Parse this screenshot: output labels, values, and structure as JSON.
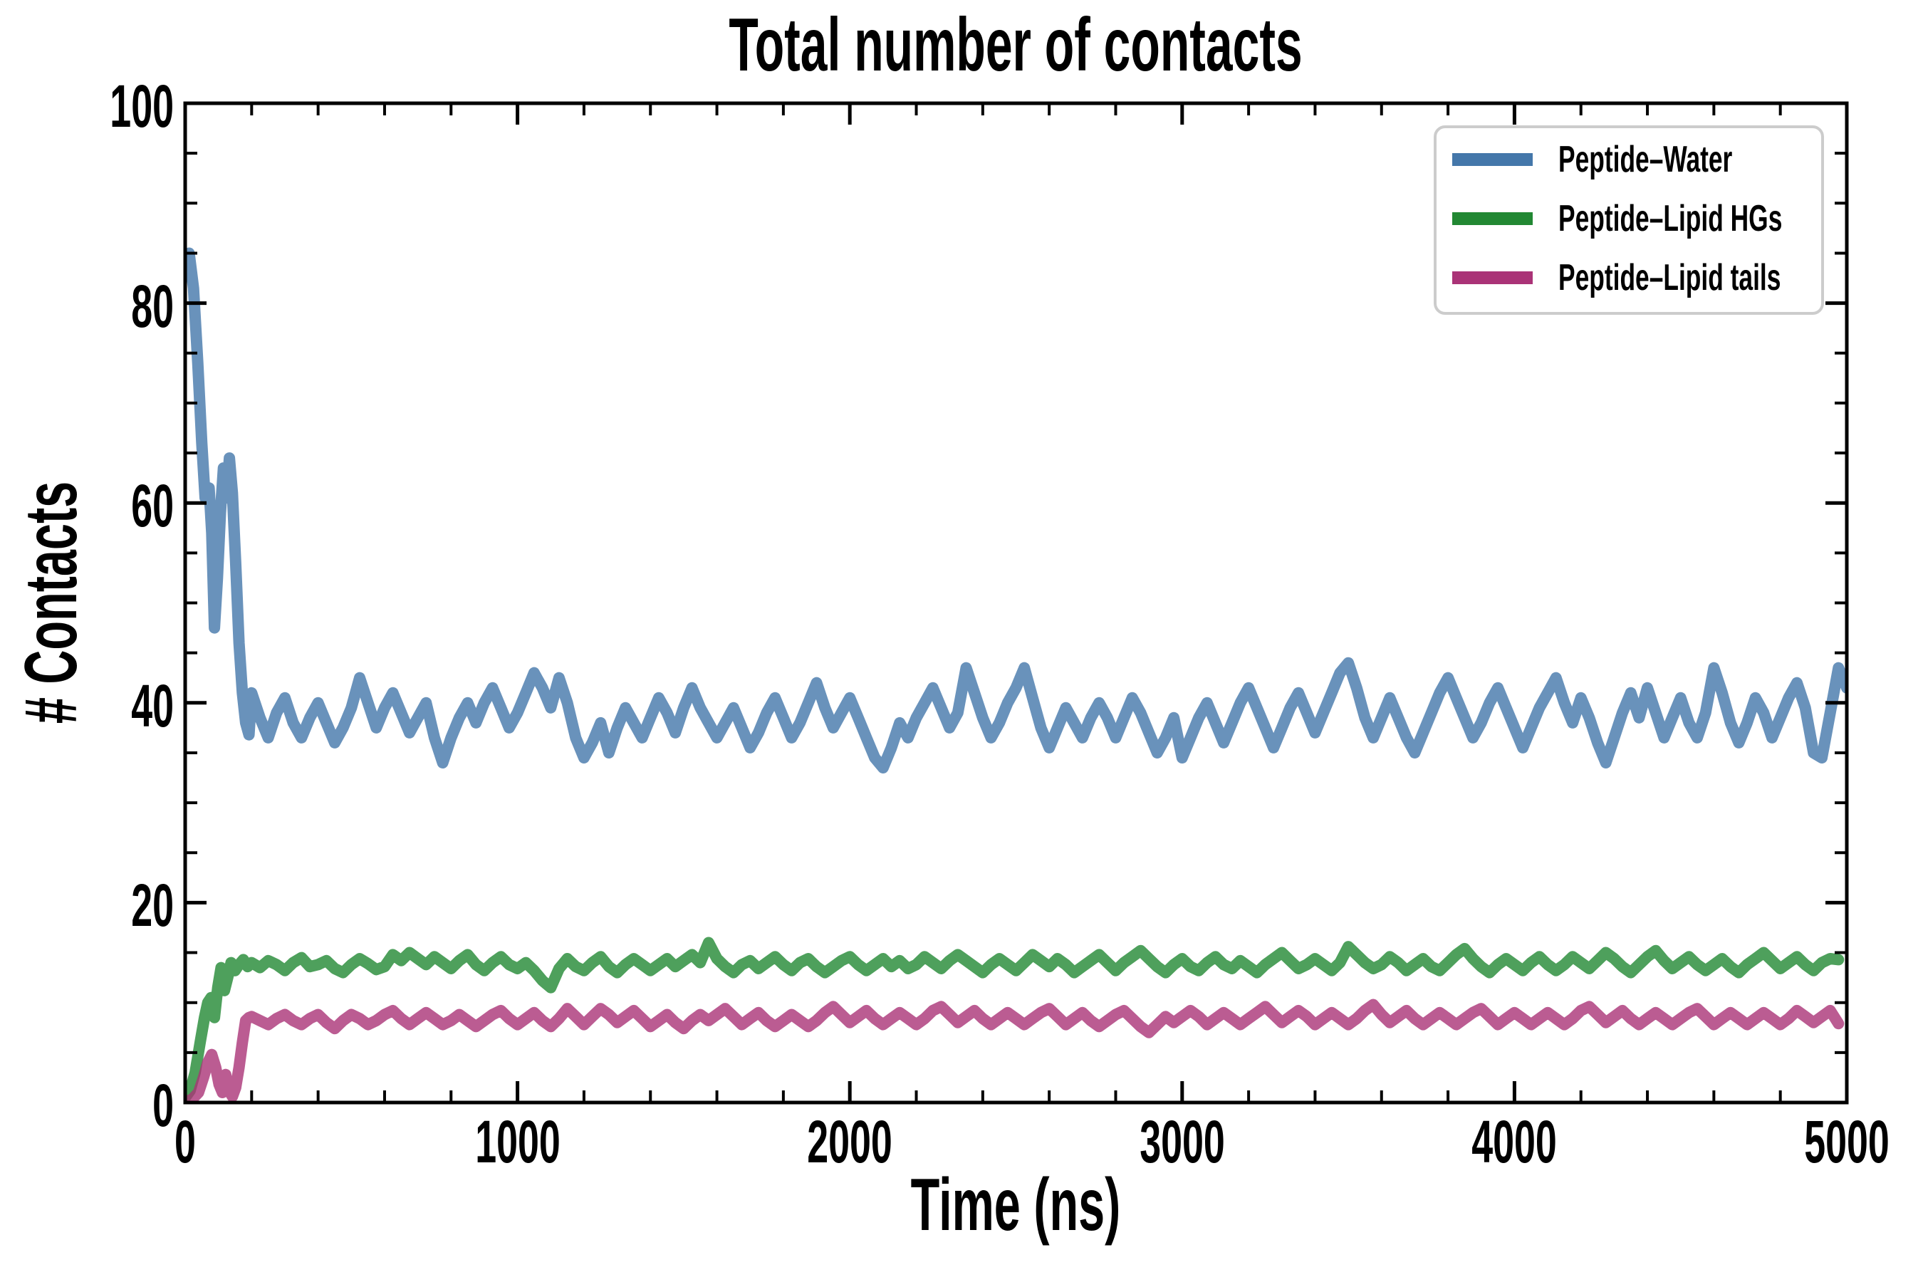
{
  "chart_data": {
    "type": "line",
    "title": "Total number of contacts",
    "xlabel": "Time (ns)",
    "ylabel": "# Contacts",
    "xlim": [
      0,
      5000
    ],
    "ylim": [
      0,
      100
    ],
    "x_major_ticks": [
      0,
      1000,
      2000,
      3000,
      4000,
      5000
    ],
    "x_minor_step": 200,
    "y_major_ticks": [
      0,
      20,
      40,
      60,
      80,
      100
    ],
    "y_minor_step": 5,
    "grid": false,
    "tick_direction": "in",
    "legend_position": "upper right",
    "line_width": 16,
    "line_alpha": 0.8,
    "background": "#ffffff",
    "axis_color": "#000000",
    "legend_border_color": "#cccccc",
    "series": [
      {
        "name": "Peptide–Water",
        "color": "#4477AA",
        "head": [
          [
            0,
            83.5
          ],
          [
            12,
            85
          ],
          [
            25,
            81.5
          ],
          [
            38,
            74
          ],
          [
            50,
            66
          ],
          [
            60,
            60.5
          ],
          [
            72,
            61.5
          ],
          [
            80,
            57
          ],
          [
            88,
            47.5
          ],
          [
            97,
            52.5
          ],
          [
            106,
            59
          ],
          [
            115,
            63.5
          ],
          [
            124,
            60.5
          ],
          [
            133,
            64.5
          ],
          [
            142,
            61
          ],
          [
            152,
            54
          ],
          [
            162,
            46
          ],
          [
            172,
            41
          ],
          [
            182,
            38
          ],
          [
            192,
            36.8
          ]
        ],
        "tail": {
          "x0": 200,
          "dx": 25,
          "y": [
            41,
            38.5,
            36.5,
            39,
            40.5,
            38,
            36.5,
            38.5,
            40,
            38,
            36,
            37.5,
            39.5,
            42.5,
            40,
            37.5,
            39.5,
            41,
            39,
            37,
            38.5,
            40,
            36.5,
            34,
            36.5,
            38.5,
            40,
            38,
            40,
            41.5,
            39.5,
            37.5,
            39,
            41,
            43,
            41.5,
            39.5,
            42.5,
            40,
            36.5,
            34.5,
            36,
            38,
            35,
            37.5,
            39.5,
            38,
            36.5,
            38.5,
            40.5,
            39,
            37,
            39.5,
            41.5,
            39.5,
            38,
            36.5,
            38,
            39.5,
            37.5,
            35.5,
            37,
            39,
            40.5,
            38.5,
            36.5,
            38,
            40,
            42,
            39.5,
            37.5,
            39,
            40.5,
            38.5,
            36.5,
            34.5,
            33.5,
            35.5,
            38,
            36.5,
            38.5,
            40,
            41.5,
            39.5,
            37.5,
            39,
            43.5,
            41,
            38.5,
            36.5,
            38,
            40,
            41.5,
            43.5,
            40.5,
            37.5,
            35.5,
            37.5,
            39.5,
            38,
            36.5,
            38.5,
            40,
            38.5,
            36.5,
            38.5,
            40.5,
            39,
            37,
            35,
            36.5,
            38.5,
            34.5,
            36.5,
            38.5,
            40,
            38,
            36,
            38,
            40,
            41.5,
            39.5,
            37.5,
            35.5,
            37.5,
            39.5,
            41,
            39,
            37,
            39,
            41,
            43,
            44,
            41.5,
            38.5,
            36.5,
            38.5,
            40.5,
            38.5,
            36.5,
            35,
            37,
            39,
            41,
            42.5,
            40.5,
            38.5,
            36.5,
            38,
            40,
            41.5,
            39.5,
            37.5,
            35.5,
            37.5,
            39.5,
            41,
            42.5,
            40,
            38,
            40.5,
            38.5,
            36,
            34,
            36.5,
            39,
            41,
            38.5,
            41.5,
            39,
            36.5,
            38.5,
            40.5,
            38,
            36.5,
            39,
            43.5,
            41,
            38,
            36,
            38,
            40.5,
            39,
            36.5,
            38.5,
            40.5,
            42,
            39.5,
            35,
            34.5,
            39,
            43.5,
            41.5
          ]
        }
      },
      {
        "name": "Peptide–Lipid HGs",
        "color": "#228833",
        "head": [
          [
            0,
            0.5
          ],
          [
            15,
            1.2
          ],
          [
            30,
            3
          ],
          [
            45,
            6
          ],
          [
            58,
            8.5
          ],
          [
            68,
            10
          ],
          [
            78,
            10.5
          ],
          [
            88,
            8.5
          ],
          [
            98,
            11.5
          ],
          [
            108,
            13.5
          ],
          [
            118,
            11.2
          ],
          [
            128,
            12.5
          ],
          [
            138,
            14
          ],
          [
            150,
            13.2
          ],
          [
            162,
            13.8
          ],
          [
            175,
            14.3
          ],
          [
            188,
            13.6
          ]
        ],
        "tail": {
          "x0": 200,
          "dx": 25,
          "y": [
            14,
            13.5,
            14.2,
            13.8,
            13.2,
            14,
            14.5,
            13.6,
            13.8,
            14.2,
            13.4,
            13,
            13.8,
            14.4,
            13.9,
            13.3,
            13.6,
            14.8,
            14.2,
            15,
            14.4,
            13.8,
            14.6,
            14,
            13.4,
            14.2,
            14.8,
            13.8,
            13.2,
            14,
            14.6,
            13.8,
            13.4,
            14,
            13.2,
            12.2,
            11.5,
            13.4,
            14.4,
            13.6,
            13.2,
            14,
            14.6,
            13.6,
            13,
            13.8,
            14.4,
            13.8,
            13.2,
            13.8,
            14.4,
            13.6,
            14.2,
            14.8,
            14,
            16,
            14.4,
            13.6,
            13,
            13.8,
            14.2,
            13.4,
            14,
            14.6,
            13.8,
            13.2,
            14,
            14.4,
            13.6,
            13,
            13.6,
            14.2,
            14.6,
            13.8,
            13.2,
            13.8,
            14.4,
            13.6,
            14.2,
            13.4,
            13.8,
            14.6,
            14,
            13.4,
            14.2,
            14.8,
            14.2,
            13.6,
            13,
            13.8,
            14.4,
            13.8,
            13.2,
            14,
            14.8,
            14.2,
            13.6,
            14.4,
            13.8,
            13,
            13.6,
            14.2,
            14.8,
            14,
            13.2,
            14,
            14.6,
            15.2,
            14.4,
            13.6,
            13,
            13.8,
            14.4,
            13.6,
            13.2,
            14,
            14.6,
            13.8,
            13.4,
            14.2,
            13.6,
            13,
            13.8,
            14.4,
            15,
            14.2,
            13.4,
            13.8,
            14.4,
            13.8,
            13.2,
            14,
            15.6,
            14.8,
            14,
            13.4,
            13.8,
            14.6,
            14,
            13.2,
            13.8,
            14.4,
            13.6,
            13.2,
            14,
            14.8,
            15.4,
            14.4,
            13.6,
            13,
            13.8,
            14.4,
            13.8,
            13.2,
            14,
            14.6,
            13.8,
            13.2,
            13.8,
            14.6,
            14,
            13.4,
            14.2,
            15,
            14.4,
            13.6,
            13,
            13.8,
            14.6,
            15.2,
            14.2,
            13.4,
            14,
            14.6,
            13.8,
            13.2,
            13.8,
            14.4,
            13.6,
            13,
            13.8,
            14.4,
            15,
            14.2,
            13.4,
            14,
            14.6,
            13.8,
            13.2,
            14,
            14.4,
            14.3
          ]
        }
      },
      {
        "name": "Peptide–Lipid tails",
        "color": "#AA3377",
        "head": [
          [
            0,
            0.1
          ],
          [
            20,
            0.3
          ],
          [
            40,
            1
          ],
          [
            55,
            2.5
          ],
          [
            68,
            4
          ],
          [
            80,
            4.8
          ],
          [
            92,
            3.5
          ],
          [
            102,
            1.8
          ],
          [
            112,
            1
          ],
          [
            122,
            2.8
          ],
          [
            132,
            1.2
          ],
          [
            142,
            0.6
          ],
          [
            152,
            1.5
          ],
          [
            162,
            3.5
          ],
          [
            172,
            6
          ],
          [
            182,
            8.2
          ],
          [
            192,
            8.5
          ]
        ],
        "tail": {
          "x0": 200,
          "dx": 25,
          "y": [
            8.6,
            8.2,
            7.8,
            8.4,
            8.8,
            8.2,
            7.8,
            8.4,
            8.8,
            8,
            7.4,
            8.2,
            8.8,
            8.4,
            7.8,
            8.2,
            8.8,
            9.2,
            8.4,
            7.8,
            8.4,
            9,
            8.4,
            7.8,
            8.2,
            8.8,
            8.2,
            7.6,
            8.2,
            8.8,
            9.2,
            8.4,
            7.8,
            8.4,
            9,
            8.2,
            7.6,
            8.4,
            9.4,
            8.6,
            7.8,
            8.6,
            9.4,
            8.8,
            8,
            8.6,
            9.2,
            8.4,
            7.6,
            8.2,
            8.8,
            8,
            7.4,
            8.2,
            8.8,
            8.2,
            8.8,
            9.4,
            8.6,
            7.8,
            8.4,
            9,
            8.2,
            7.6,
            8.2,
            8.8,
            8.2,
            7.6,
            8.2,
            9,
            9.6,
            8.8,
            8,
            8.6,
            9.2,
            8.4,
            7.8,
            8.4,
            9,
            8.4,
            7.8,
            8.4,
            9.2,
            9.6,
            8.8,
            8,
            8.6,
            9.2,
            8.4,
            7.8,
            8.4,
            9,
            8.4,
            7.8,
            8.4,
            9,
            9.4,
            8.6,
            7.8,
            8.4,
            9,
            8.2,
            7.6,
            8.2,
            8.8,
            9.2,
            8.4,
            7.6,
            7,
            7.8,
            8.6,
            8,
            8.6,
            9.2,
            8.6,
            7.8,
            8.4,
            9,
            8.4,
            7.8,
            8.4,
            9,
            9.6,
            8.8,
            8,
            8.6,
            9.2,
            8.6,
            7.8,
            8.4,
            9,
            8.4,
            7.8,
            8.4,
            9.2,
            9.8,
            8.8,
            8,
            8.6,
            9.2,
            8.4,
            7.8,
            8.4,
            9,
            8.4,
            7.8,
            8.4,
            9,
            9.4,
            8.6,
            7.8,
            8.4,
            9,
            8.4,
            7.8,
            8.4,
            9,
            8.4,
            7.8,
            8.4,
            9.2,
            9.6,
            8.8,
            8,
            8.6,
            9.2,
            8.4,
            7.8,
            8.4,
            9,
            8.4,
            7.8,
            8.4,
            9,
            9.4,
            8.6,
            7.8,
            8.4,
            9,
            8.4,
            7.8,
            8.4,
            9,
            8.4,
            7.8,
            8.4,
            9.2,
            8.6,
            8,
            8.6,
            9.2,
            7.9
          ]
        }
      }
    ]
  }
}
